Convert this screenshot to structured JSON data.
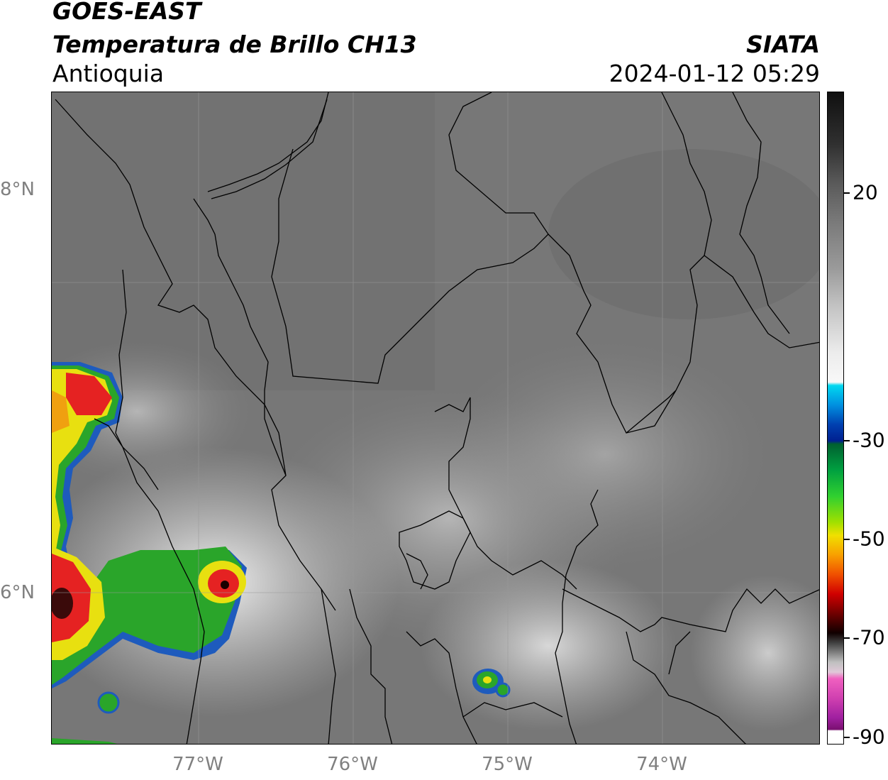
{
  "title": {
    "line1": "GOES-EAST",
    "line2": "Temperatura de Brillo CH13",
    "line3": "Antioquia",
    "org": "SIATA",
    "datetime": "2024-01-12 05:29"
  },
  "axes": {
    "y_ticks": [
      {
        "label": "8°N",
        "lat": 8
      },
      {
        "label": "6°N",
        "lat": 6
      }
    ],
    "x_ticks": [
      {
        "label": "77°W",
        "lon": -77
      },
      {
        "label": "76°W",
        "lon": -76
      },
      {
        "label": "75°W",
        "lon": -75
      },
      {
        "label": "74°W",
        "lon": -74
      }
    ],
    "lon_range": [
      -77.96,
      -72.98
    ],
    "lat_range": [
      4.93,
      9.16
    ]
  },
  "colorbar": {
    "range": [
      -90,
      30
    ],
    "ticks": [
      {
        "label": "20",
        "value": 20
      },
      {
        "label": "-30",
        "value": -30
      },
      {
        "label": "-50",
        "value": -50
      },
      {
        "label": "-70",
        "value": -70
      },
      {
        "label": "-90",
        "value": -90
      }
    ]
  },
  "colors": {
    "frame": "#000000",
    "tick_label_gray": "#808080"
  }
}
